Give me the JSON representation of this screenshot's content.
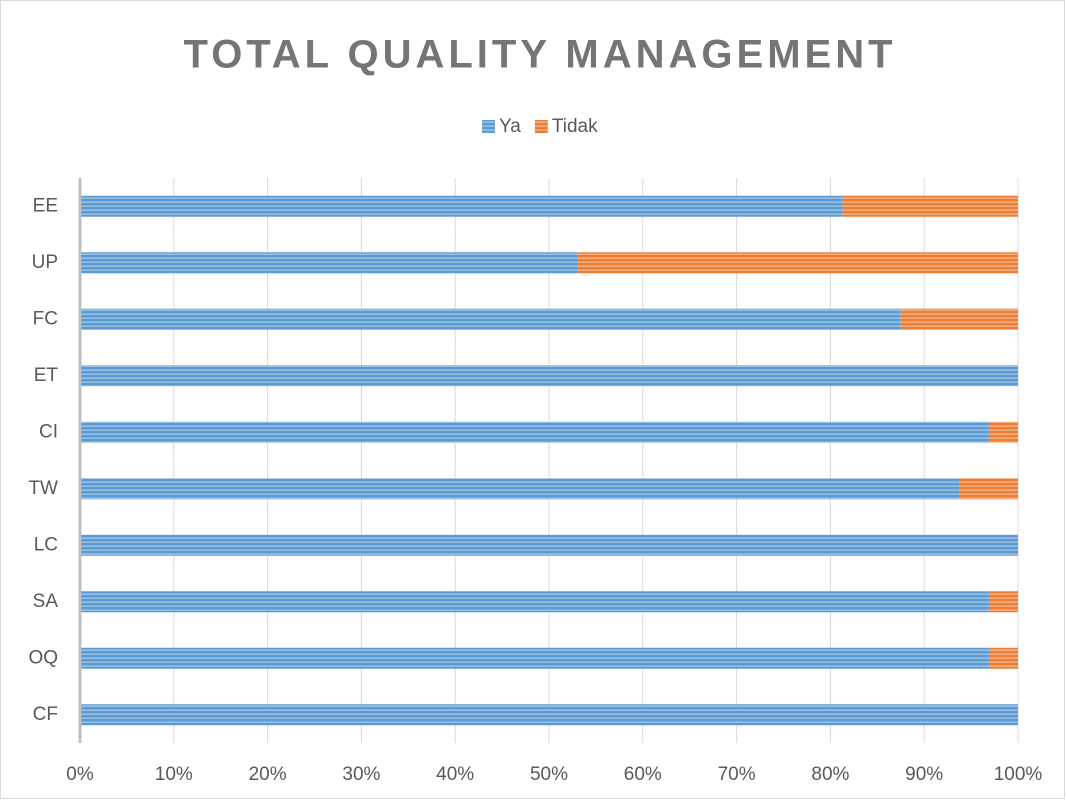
{
  "chart_data": {
    "type": "bar",
    "orientation": "horizontal",
    "stacked": true,
    "title": "TOTAL QUALITY MANAGEMENT",
    "categories": [
      "CF",
      "OQ",
      "SA",
      "LC",
      "TW",
      "CI",
      "ET",
      "FC",
      "UP",
      "EE"
    ],
    "series": [
      {
        "name": "Ya",
        "color": "#5b9bd5",
        "values": [
          100,
          96.9,
          96.9,
          100,
          93.8,
          96.9,
          100,
          87.5,
          53.1,
          81.3
        ]
      },
      {
        "name": "Tidak",
        "color": "#ed7d31",
        "values": [
          0,
          3.1,
          3.1,
          0,
          6.2,
          3.1,
          0,
          12.5,
          46.9,
          18.7
        ]
      }
    ],
    "xlim": [
      0,
      100
    ],
    "xticks": [
      {
        "value": 0,
        "label": "0%"
      },
      {
        "value": 10,
        "label": "10%"
      },
      {
        "value": 20,
        "label": "20%"
      },
      {
        "value": 30,
        "label": "30%"
      },
      {
        "value": 40,
        "label": "40%"
      },
      {
        "value": 50,
        "label": "50%"
      },
      {
        "value": 60,
        "label": "60%"
      },
      {
        "value": 70,
        "label": "70%"
      },
      {
        "value": 80,
        "label": "80%"
      },
      {
        "value": 90,
        "label": "90%"
      },
      {
        "value": 100,
        "label": "100%"
      }
    ],
    "grid": true,
    "legend": "top"
  }
}
